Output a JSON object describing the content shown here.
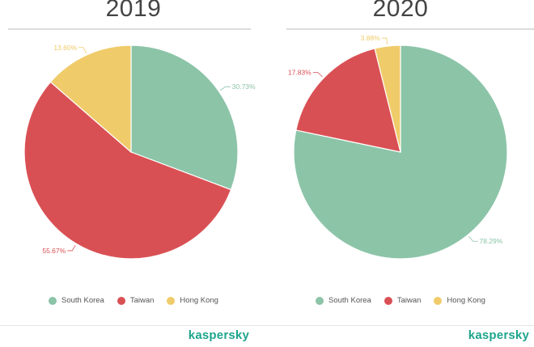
{
  "chart_data": [
    {
      "type": "pie",
      "title": "2019",
      "categories": [
        "South Korea",
        "Taiwan",
        "Hong Kong"
      ],
      "values": [
        30.73,
        55.67,
        13.6
      ],
      "value_labels": [
        "30.73%",
        "55.67%",
        "13.60%"
      ],
      "colors": [
        "#8cc4a8",
        "#d95054",
        "#f0cb6a"
      ],
      "legend": [
        "South Korea",
        "Taiwan",
        "Hong Kong"
      ],
      "legend_position": "bottom"
    },
    {
      "type": "pie",
      "title": "2020",
      "categories": [
        "South Korea",
        "Taiwan",
        "Hong Kong"
      ],
      "values": [
        78.29,
        17.83,
        3.88
      ],
      "value_labels": [
        "78.29%",
        "17.83%",
        "3.88%"
      ],
      "colors": [
        "#8cc4a8",
        "#d95054",
        "#f0cb6a"
      ],
      "legend": [
        "South Korea",
        "Taiwan",
        "Hong Kong"
      ],
      "legend_position": "bottom"
    }
  ],
  "logo_text": "kaspersky"
}
